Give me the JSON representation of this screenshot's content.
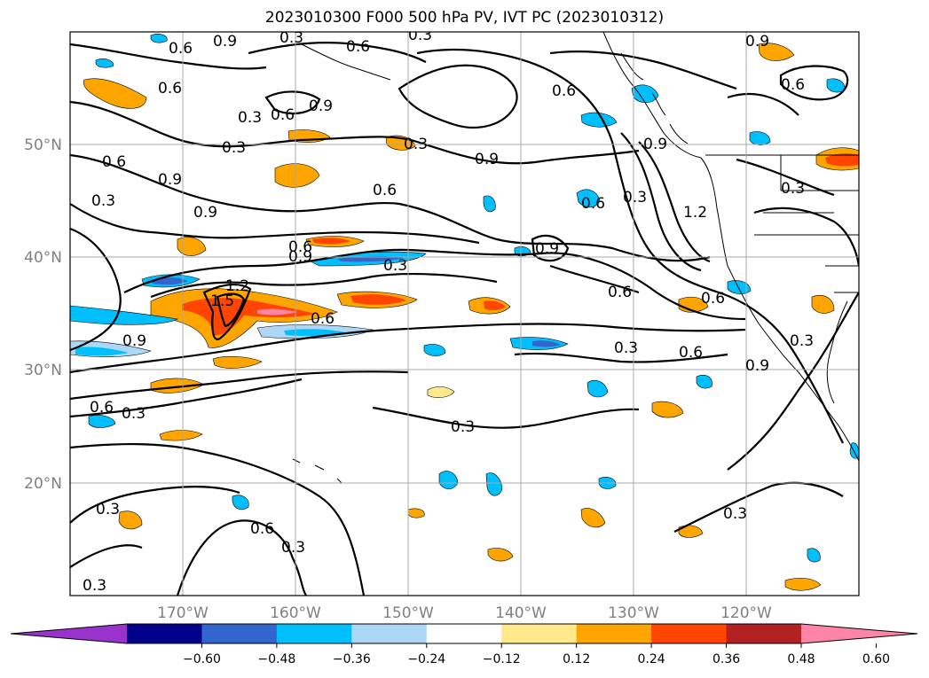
{
  "title": "2023010300 F000 500 hPa PV, IVT PC (2023010312)",
  "map": {
    "lon_ticks": [
      {
        "label": "170°W",
        "lon": -170
      },
      {
        "label": "160°W",
        "lon": -160
      },
      {
        "label": "150°W",
        "lon": -150
      },
      {
        "label": "140°W",
        "lon": -140
      },
      {
        "label": "130°W",
        "lon": -130
      },
      {
        "label": "120°W",
        "lon": -120
      }
    ],
    "lat_ticks": [
      {
        "label": "50°N",
        "lat": 50
      },
      {
        "label": "40°N",
        "lat": 40
      },
      {
        "label": "30°N",
        "lat": 30
      },
      {
        "label": "20°N",
        "lat": 20
      }
    ],
    "grid": true
  },
  "contour_labels": [
    {
      "text": "0.9"
    },
    {
      "text": "0.6"
    },
    {
      "text": "0.3"
    },
    {
      "text": "0.6"
    },
    {
      "text": "0.9"
    },
    {
      "text": "0.3"
    },
    {
      "text": "0.6"
    },
    {
      "text": "0.3"
    },
    {
      "text": "0.6"
    },
    {
      "text": "0.9"
    },
    {
      "text": "0.3"
    },
    {
      "text": "0.6"
    },
    {
      "text": "0.9"
    },
    {
      "text": "0.3"
    },
    {
      "text": "0.9"
    },
    {
      "text": "0.6"
    },
    {
      "text": "0.3"
    },
    {
      "text": "1.2"
    },
    {
      "text": "1.5"
    },
    {
      "text": "0.6"
    },
    {
      "text": "0.9"
    },
    {
      "text": "0.3"
    },
    {
      "text": "0.6"
    },
    {
      "text": "0.6"
    },
    {
      "text": "0.9"
    },
    {
      "text": "0.3"
    },
    {
      "text": "0.6"
    },
    {
      "text": "0.3"
    },
    {
      "text": "0.6"
    },
    {
      "text": "0.3"
    },
    {
      "text": "0.9"
    },
    {
      "text": "0.6"
    },
    {
      "text": "0.3"
    },
    {
      "text": "0.9"
    },
    {
      "text": "0.6"
    },
    {
      "text": "0.3"
    },
    {
      "text": "0.3"
    },
    {
      "text": "0.6"
    },
    {
      "text": "0.3"
    },
    {
      "text": "0.3"
    },
    {
      "text": "0.3"
    },
    {
      "text": "0.9"
    },
    {
      "text": "0.3"
    },
    {
      "text": "0.6"
    },
    {
      "text": "1.2"
    },
    {
      "text": "0.6"
    },
    {
      "text": "0.9"
    }
  ],
  "colorbar": {
    "ticks": [
      "−0.60",
      "−0.48",
      "−0.36",
      "−0.24",
      "−0.12",
      "0.12",
      "0.24",
      "0.36",
      "0.48",
      "0.60"
    ],
    "colors": [
      "#9933cc",
      "#00008b",
      "#3366cc",
      "#00bfff",
      "#add8f5",
      "#ffffff",
      "#ffe98a",
      "#ffa500",
      "#ff4500",
      "#b22222",
      "#ff85a8"
    ]
  }
}
